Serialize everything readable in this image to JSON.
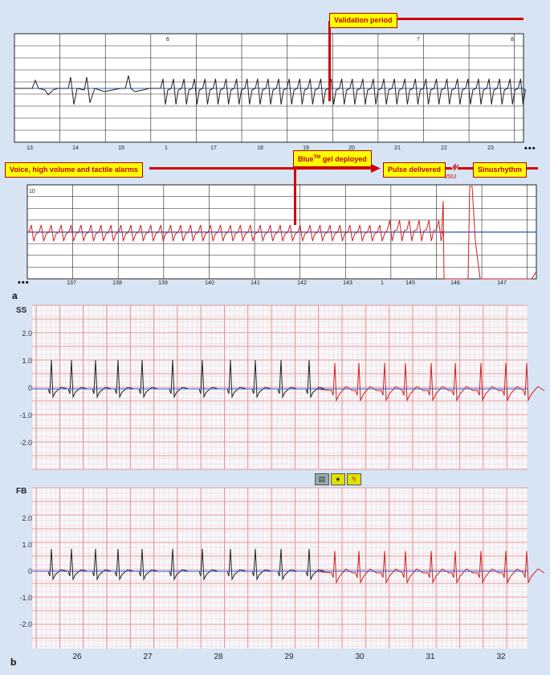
{
  "panel_a": {
    "label": "a",
    "strip1": {
      "ticks": [
        "13",
        "14",
        "15",
        "1",
        "17",
        "18",
        "19",
        "20",
        "21",
        "22",
        "23"
      ],
      "markers": [
        "6",
        "7",
        "8"
      ]
    },
    "strip2": {
      "ticks": [
        "137",
        "138",
        "139",
        "140",
        "141",
        "142",
        "143",
        "1",
        "145",
        "146",
        "147"
      ],
      "marker": "10"
    },
    "annotations": {
      "validation": "Validation period",
      "voice": "Voice, high volume and tactile alarms",
      "gel": "BlueTM gel deployed",
      "pulse": "Pulse delivered",
      "sinus": "Sinusrhythm",
      "energy": "150J"
    },
    "ellipsis": "•••"
  },
  "panel_b": {
    "label": "b",
    "leads": [
      "SS",
      "FB"
    ],
    "y_ticks": [
      "2.0",
      "1.0",
      "0",
      "-1.0",
      "-2.0"
    ],
    "x_ticks": [
      "26",
      "27",
      "28",
      "29",
      "30",
      "31",
      "32"
    ],
    "icons": [
      "device-icon",
      "gel-icon",
      "shock-icon"
    ]
  },
  "colors": {
    "pre": "#222222",
    "post": "#d22020",
    "baseline": "#2f5cd6",
    "annotation": "#d00000",
    "grid_b": "#e08080"
  },
  "chart_data": [
    {
      "type": "line",
      "name": "panel-a-strip-1",
      "x_ticks": [
        "13",
        "14",
        "15",
        "1",
        "17",
        "18",
        "19",
        "20",
        "21",
        "22",
        "23"
      ]
    },
    {
      "type": "line",
      "name": "panel-a-strip-2",
      "x_ticks": [
        "137",
        "138",
        "139",
        "140",
        "141",
        "142",
        "143",
        "1",
        "145",
        "146",
        "147"
      ]
    },
    {
      "type": "line",
      "name": "panel-b-SS",
      "ylim": [
        -3,
        3
      ],
      "y_ticks": [
        2.0,
        1.0,
        0,
        -1.0,
        -2.0
      ],
      "x_ticks": [
        26,
        27,
        28,
        29,
        30,
        31,
        32
      ]
    },
    {
      "type": "line",
      "name": "panel-b-FB",
      "ylim": [
        -3,
        3
      ],
      "y_ticks": [
        2.0,
        1.0,
        0,
        -1.0,
        -2.0
      ],
      "x_ticks": [
        26,
        27,
        28,
        29,
        30,
        31,
        32
      ]
    }
  ]
}
